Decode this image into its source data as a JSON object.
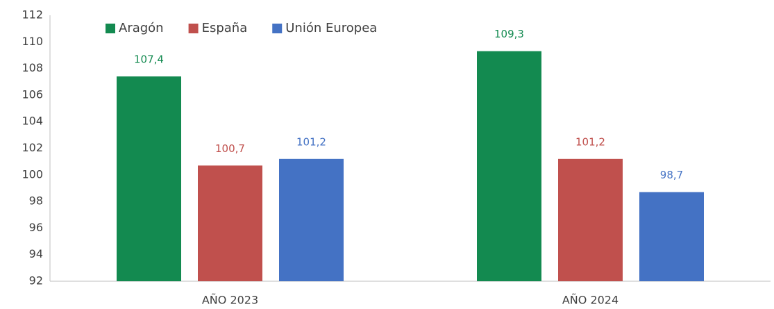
{
  "chart_data": {
    "type": "bar",
    "categories": [
      "AÑO 2023",
      "AÑO 2024"
    ],
    "series": [
      {
        "name": "Aragón",
        "color": "#138a50",
        "values": [
          107.4,
          109.3
        ],
        "value_labels": [
          "107,4",
          "109,3"
        ]
      },
      {
        "name": "España",
        "color": "#c0504d",
        "values": [
          100.7,
          101.2
        ],
        "value_labels": [
          "100,7",
          "101,2"
        ]
      },
      {
        "name": "Unión Europea",
        "color": "#4472c4",
        "values": [
          101.2,
          98.7
        ],
        "value_labels": [
          "101,2",
          "98,7"
        ]
      }
    ],
    "ylim": [
      92,
      112
    ],
    "yticks": [
      92,
      94,
      96,
      98,
      100,
      102,
      104,
      106,
      108,
      110,
      112
    ],
    "grid": false,
    "legend": "top-left"
  }
}
